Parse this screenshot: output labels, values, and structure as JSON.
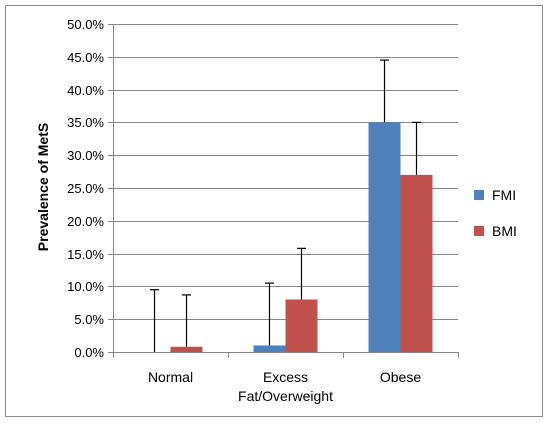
{
  "chart_data": {
    "type": "bar",
    "title": "",
    "xlabel": "",
    "ylabel": "Prevalence of MetS",
    "ylim": [
      0,
      50
    ],
    "y_tick_step": 5,
    "y_tick_format": "percent_1dp",
    "grid": true,
    "legend_position": "right",
    "categories": [
      [
        "Normal"
      ],
      [
        "Excess",
        "Fat/Overweight"
      ],
      [
        "Obese"
      ]
    ],
    "series": [
      {
        "name": "FMI",
        "color": "#4f81bd",
        "values": [
          0.0,
          1.0,
          35.0
        ],
        "error_upper": [
          9.5,
          10.5,
          44.5
        ]
      },
      {
        "name": "BMI",
        "color": "#c0504d",
        "values": [
          0.8,
          8.0,
          27.0
        ],
        "error_upper": [
          8.7,
          15.8,
          35.0
        ]
      }
    ]
  }
}
